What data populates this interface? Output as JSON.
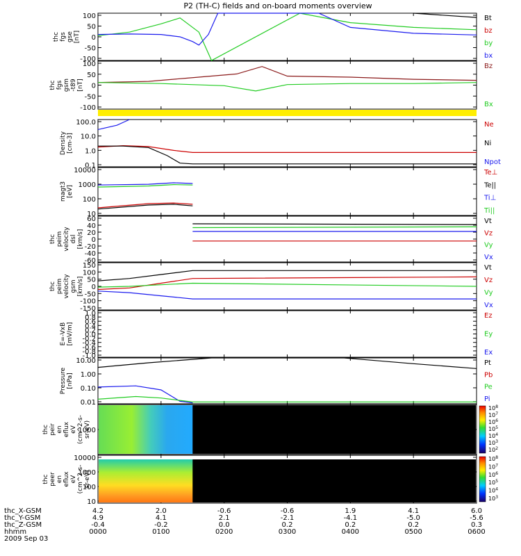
{
  "title": "P2 (TH-C) fields and on-board moments overview",
  "colors": {
    "black": "#000000",
    "red": "#cc0000",
    "darkred": "#8b1a1a",
    "green": "#22cc22",
    "blue": "#1a1aee",
    "yellow": "#ffee00",
    "spectrogram_fill": "#000000"
  },
  "panels": [
    {
      "id": "fgs-gse",
      "ylabel": [
        "thc",
        "fgs",
        "gse",
        "[nT]"
      ],
      "yticks": [
        "100",
        "50",
        "0",
        "-50",
        "-100"
      ],
      "legend": [
        {
          "text": "Bt",
          "color": "#000000"
        },
        {
          "text": "bz",
          "color": "#cc0000"
        },
        {
          "text": "by",
          "color": "#22cc22"
        },
        {
          "text": "bx",
          "color": "#1a1aee"
        }
      ]
    },
    {
      "id": "fgs-gsm",
      "ylabel": [
        "thc",
        "fgs",
        "gsm",
        "-t89",
        "[nT]"
      ],
      "yticks": [
        "100",
        "50",
        "0",
        "-50",
        "-100"
      ],
      "legend": [
        {
          "text": "Bz",
          "color": "#8b1a1a"
        },
        {
          "text": "Bx",
          "color": "#22cc22"
        }
      ]
    },
    {
      "id": "density",
      "ylabel": [
        "Density",
        "[cm-3]"
      ],
      "yticks": [
        "100.0",
        "10.0",
        "1.0",
        "0.1"
      ],
      "legend": [
        {
          "text": "Ne",
          "color": "#cc0000"
        },
        {
          "text": "Ni",
          "color": "#000000"
        },
        {
          "text": "Npot",
          "color": "#1a1aee"
        }
      ]
    },
    {
      "id": "temperature",
      "ylabel": [
        "magt3",
        "[eV]"
      ],
      "yticks": [
        "10000",
        "1000",
        "100",
        "10"
      ],
      "legend": [
        {
          "text": "Te⊥",
          "color": "#cc0000"
        },
        {
          "text": "Te||",
          "color": "#000000"
        },
        {
          "text": "Ti⊥",
          "color": "#1a1aee"
        },
        {
          "text": "Ti||",
          "color": "#22cc22"
        }
      ]
    },
    {
      "id": "velocity-dsl",
      "ylabel": [
        "thc",
        "peim",
        "velocity",
        "dsl",
        "[km/s]"
      ],
      "yticks": [
        "60",
        "40",
        "20",
        "0",
        "-20",
        "-40",
        "-60"
      ],
      "legend": [
        {
          "text": "Vt",
          "color": "#000000"
        },
        {
          "text": "Vz",
          "color": "#cc0000"
        },
        {
          "text": "Vy",
          "color": "#22cc22"
        },
        {
          "text": "Vx",
          "color": "#1a1aee"
        }
      ]
    },
    {
      "id": "velocity-gsm",
      "ylabel": [
        "thc",
        "peim",
        "velocity",
        "gsm",
        "[km/s]"
      ],
      "yticks": [
        "150",
        "100",
        "50",
        "0",
        "-50",
        "-100",
        "-150"
      ],
      "legend": [
        {
          "text": "Vt",
          "color": "#000000"
        },
        {
          "text": "Vz",
          "color": "#cc0000"
        },
        {
          "text": "Vy",
          "color": "#22cc22"
        },
        {
          "text": "Vx",
          "color": "#1a1aee"
        }
      ]
    },
    {
      "id": "efield",
      "ylabel": [
        "E=-VxB",
        "[mV/m]"
      ],
      "yticks": [
        "1.0",
        "0.8",
        "0.6",
        "0.4",
        "0.2",
        "0.0",
        "-0.2",
        "-0.4",
        "-0.6",
        "-0.8",
        "-1.0"
      ],
      "legend": [
        {
          "text": "Ez",
          "color": "#cc0000"
        },
        {
          "text": "Ey",
          "color": "#22cc22"
        },
        {
          "text": "Ex",
          "color": "#1a1aee"
        }
      ]
    },
    {
      "id": "pressure",
      "ylabel": [
        "Pressure",
        "[nPa]"
      ],
      "yticks": [
        "10.00",
        "1.00",
        "0.10",
        "0.01"
      ],
      "legend": [
        {
          "text": "Pt",
          "color": "#000000"
        },
        {
          "text": "Pb",
          "color": "#cc0000"
        },
        {
          "text": "Pe",
          "color": "#22cc22"
        },
        {
          "text": "Pi",
          "color": "#1a1aee"
        }
      ]
    },
    {
      "id": "peir-spec",
      "ylabel": [
        "thc",
        "peir",
        "en",
        "eflux",
        "eV",
        "(cm^2-s-",
        "sr-eV)"
      ],
      "yticks": [
        "1000"
      ],
      "colorbar": [
        "10^8",
        "10^7",
        "10^6",
        "10^5",
        "10^4",
        "10^3",
        "10^2"
      ]
    },
    {
      "id": "peer-spec",
      "ylabel": [
        "thc",
        "peer",
        "en",
        "eflux",
        "eV",
        "(cm^2-s-",
        "sr-eV)"
      ],
      "yticks": [
        "10000",
        "1000",
        "100",
        "10"
      ],
      "colorbar": [
        "10^8",
        "10^7",
        "10^6",
        "10^5",
        "10^4",
        "10^3"
      ]
    }
  ],
  "xaxis": {
    "rows": [
      {
        "label": "thc_X-GSM",
        "values": [
          "4.2",
          "2.0",
          "-0.6",
          "-0.6",
          "1.9",
          "4.1",
          "6.0"
        ]
      },
      {
        "label": "thc_Y-GSM",
        "values": [
          "4.9",
          "4.1",
          "2.1",
          "-2.1",
          "-4.1",
          "-5.0",
          "-5.6"
        ]
      },
      {
        "label": "thc_Z-GSM",
        "values": [
          "-0.4",
          "-0.2",
          "0.0",
          "0.2",
          "0.2",
          "0.2",
          "0.3"
        ]
      },
      {
        "label": "hhmm",
        "values": [
          "0000",
          "0100",
          "0200",
          "0300",
          "0400",
          "0500",
          "0600"
        ]
      }
    ],
    "date": "2009 Sep 03"
  },
  "chart_data": {
    "type": "line",
    "title": "P2 (TH-C) fields and on-board moments overview",
    "x_ticks": [
      "0000",
      "0100",
      "0200",
      "0300",
      "0400",
      "0500",
      "0600"
    ],
    "time_range_hours": [
      0,
      6
    ],
    "panels": [
      {
        "name": "fgs gse",
        "ylim": [
          -100,
          100
        ],
        "series": [
          {
            "name": "by",
            "x": [
              0,
              0.5,
              1.0,
              1.3,
              1.6,
              1.8,
              3.2,
              4.0,
              5.0,
              6.0
            ],
            "y": [
              5,
              20,
              55,
              80,
              20,
              -100,
              100,
              60,
              40,
              30
            ]
          },
          {
            "name": "bx",
            "x": [
              0,
              0.5,
              1.0,
              1.3,
              1.5,
              1.6,
              1.75,
              1.9,
              3.5,
              4.0,
              5.0,
              6.0
            ],
            "y": [
              10,
              12,
              10,
              0,
              -20,
              -35,
              10,
              100,
              100,
              40,
              15,
              8
            ]
          },
          {
            "name": "Bt",
            "x": [
              5.0,
              6.0
            ],
            "y": [
              100,
              82
            ]
          }
        ]
      },
      {
        "name": "fgs gsm -t89",
        "ylim": [
          -125,
          100
        ],
        "series": [
          {
            "name": "Bz",
            "x": [
              0,
              0.8,
              1.4,
              2.2,
              2.6,
              3.0,
              4.0,
              5.0,
              6.0
            ],
            "y": [
              0,
              5,
              20,
              40,
              75,
              30,
              25,
              15,
              10
            ]
          },
          {
            "name": "Bx",
            "x": [
              0,
              1.0,
              2.0,
              2.5,
              3.0,
              4.0,
              5.0,
              6.0
            ],
            "y": [
              0,
              -5,
              -15,
              -40,
              -10,
              -5,
              -5,
              0
            ]
          }
        ]
      },
      {
        "name": "Density",
        "ylim": [
          0.05,
          100
        ],
        "log": true,
        "series": [
          {
            "name": "Ne",
            "x": [
              0,
              0.4,
              0.8,
              1.2,
              1.5,
              6.0
            ],
            "y": [
              1.2,
              1.5,
              1.3,
              0.7,
              0.5,
              0.5
            ]
          },
          {
            "name": "Ni",
            "x": [
              0,
              0.4,
              0.8,
              1.1,
              1.3,
              1.5,
              6.0
            ],
            "y": [
              1.4,
              1.4,
              1.1,
              0.3,
              0.09,
              0.08,
              0.08
            ]
          },
          {
            "name": "Npot",
            "x": [
              0,
              0.3,
              0.5
            ],
            "y": [
              20,
              40,
              100
            ]
          }
        ]
      },
      {
        "name": "Temperature",
        "ylim": [
          10,
          10000
        ],
        "log": true,
        "series": [
          {
            "name": "Ti⊥",
            "x": [
              0,
              0.8,
              1.2,
              1.5
            ],
            "y": [
              800,
              900,
              1100,
              1000
            ]
          },
          {
            "name": "Ti||",
            "x": [
              0,
              0.8,
              1.2,
              1.5
            ],
            "y": [
              600,
              700,
              850,
              800
            ]
          },
          {
            "name": "Te⊥",
            "x": [
              0,
              0.8,
              1.2,
              1.5
            ],
            "y": [
              30,
              55,
              60,
              50
            ]
          },
          {
            "name": "Te||",
            "x": [
              0,
              0.8,
              1.2,
              1.5
            ],
            "y": [
              25,
              45,
              50,
              40
            ]
          }
        ]
      },
      {
        "name": "velocity dsl",
        "ylim": [
          -60,
          60
        ],
        "series": [
          {
            "name": "Vt",
            "x": [
              1.5,
              6.0
            ],
            "y": [
              40,
              38
            ]
          },
          {
            "name": "Vz",
            "x": [
              1.5,
              6.0
            ],
            "y": [
              -5,
              -5
            ]
          },
          {
            "name": "Vy",
            "x": [
              1.5,
              6.0
            ],
            "y": [
              30,
              32
            ]
          },
          {
            "name": "Vx",
            "x": [
              1.5,
              6.0
            ],
            "y": [
              20,
              20
            ]
          }
        ]
      },
      {
        "name": "velocity gsm",
        "ylim": [
          -150,
          150
        ],
        "series": [
          {
            "name": "Vt",
            "x": [
              0,
              0.5,
              1.0,
              1.5,
              6.0
            ],
            "y": [
              35,
              50,
              75,
              100,
              100
            ]
          },
          {
            "name": "Vz",
            "x": [
              0,
              0.5,
              1.0,
              1.5,
              6.0
            ],
            "y": [
              -20,
              -10,
              20,
              50,
              60
            ]
          },
          {
            "name": "Vy",
            "x": [
              0,
              0.5,
              1.0,
              1.5,
              6.0
            ],
            "y": [
              -5,
              0,
              10,
              20,
              0
            ]
          },
          {
            "name": "Vx",
            "x": [
              0,
              0.5,
              1.0,
              1.5,
              6.0
            ],
            "y": [
              -30,
              -40,
              -60,
              -80,
              -80
            ]
          }
        ]
      },
      {
        "name": "E=-VxB",
        "ylim": [
          -1,
          1
        ],
        "series": []
      },
      {
        "name": "Pressure",
        "ylim": [
          0.005,
          30
        ],
        "log": true,
        "series": [
          {
            "name": "Pt",
            "x": [
              0,
              0.8,
              1.8,
              2.0,
              3.9,
              5.0,
              6.0
            ],
            "y": [
              5,
              12,
              30,
              30,
              30,
              10,
              4
            ]
          },
          {
            "name": "Pi",
            "x": [
              0,
              0.6,
              1.0,
              1.3,
              1.5
            ],
            "y": [
              0.12,
              0.15,
              0.07,
              0.008,
              0.006
            ]
          },
          {
            "name": "Pe",
            "x": [
              0,
              0.6,
              1.0,
              1.5,
              6.0
            ],
            "y": [
              0.012,
              0.02,
              0.015,
              0.007,
              0.007
            ]
          }
        ]
      }
    ]
  }
}
